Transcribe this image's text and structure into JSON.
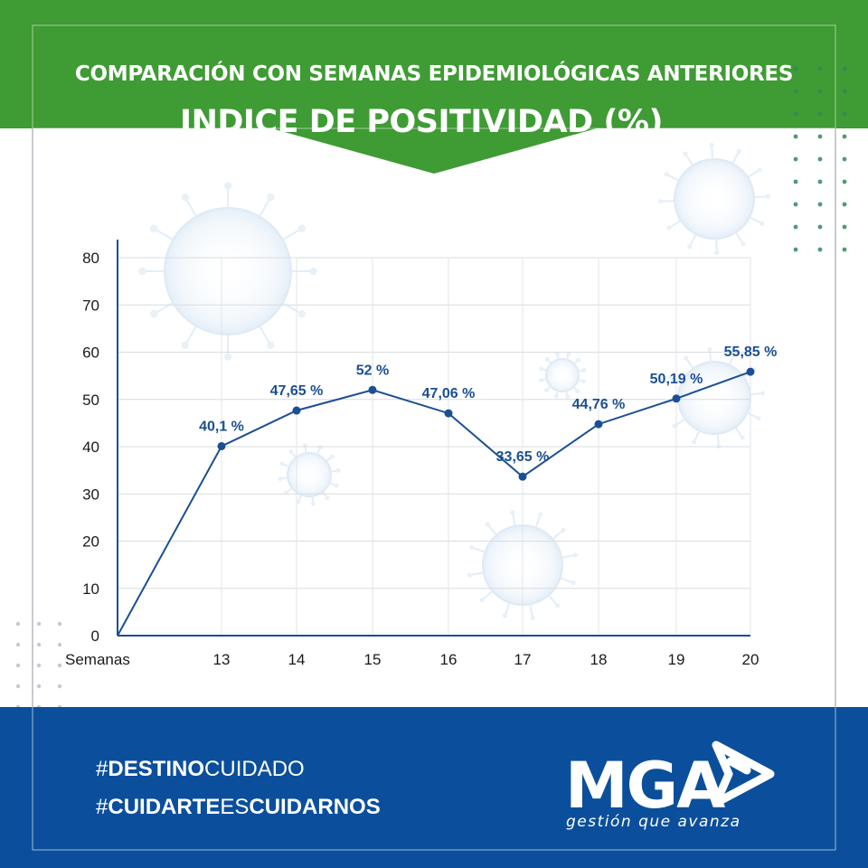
{
  "header": {
    "subtitle": "COMPARACIÓN CON SEMANAS EPIDEMIOLÓGICAS ANTERIORES",
    "title": "INDICE DE POSITIVIDAD (%)"
  },
  "colors": {
    "header_green": "#3f9b34",
    "footer_blue": "#0b4f9c",
    "line_blue": "#1b4f93",
    "frame_gray": "#bfc3c8",
    "grid_gray": "#d9dce0"
  },
  "chart_data": {
    "type": "line",
    "title": "INDICE DE POSITIVIDAD (%)",
    "subtitle": "COMPARACIÓN CON SEMANAS EPIDEMIOLÓGICAS ANTERIORES",
    "xlabel": "Semanas",
    "ylabel": "",
    "categories": [
      "",
      "13",
      "14",
      "15",
      "16",
      "17",
      "18",
      "19",
      "20"
    ],
    "values": [
      0,
      40.1,
      47.65,
      52,
      47.06,
      33.65,
      44.76,
      50.19,
      55.85
    ],
    "data_labels": [
      "",
      "40,1 %",
      "47,65 %",
      "52 %",
      "47,06 %",
      "33,65 %",
      "44,76 %",
      "50,19 %",
      "55,85 %"
    ],
    "ylim": [
      0,
      80
    ],
    "yticks": [
      "0",
      "10",
      "20",
      "30",
      "40",
      "50",
      "60",
      "70",
      "80"
    ],
    "grid": true
  },
  "footer": {
    "hashtag1": {
      "hash": "#",
      "bold": "DESTINO",
      "light": "CUIDADO"
    },
    "hashtag2": {
      "hash": "#",
      "bold": "CUIDARTE",
      "light": "ES",
      "bold2": "CUIDARNOS"
    },
    "logo_text": "MGA",
    "slogan": "gestión que avanza"
  }
}
